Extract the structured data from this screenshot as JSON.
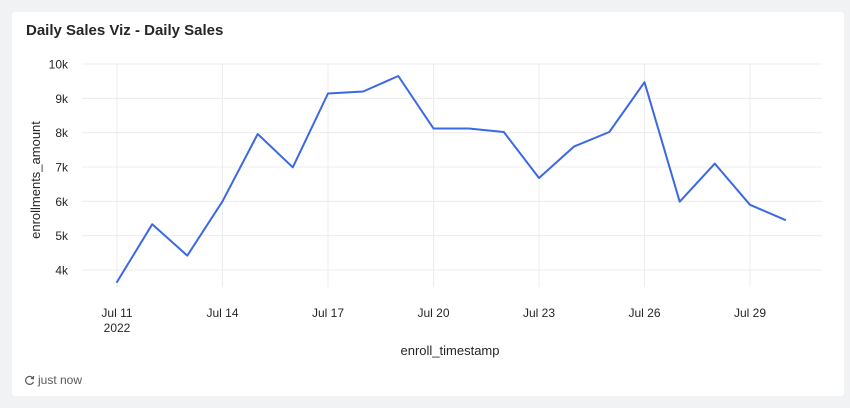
{
  "card": {
    "title": "Daily Sales Viz - Daily Sales",
    "refresh_status": "just now",
    "refresh_icon": "refresh-icon"
  },
  "chart_data": {
    "type": "line",
    "title": "Daily Sales Viz - Daily Sales",
    "xlabel": "enroll_timestamp",
    "ylabel": "enrollments_amount",
    "x": [
      "2022-07-11",
      "2022-07-12",
      "2022-07-13",
      "2022-07-14",
      "2022-07-15",
      "2022-07-16",
      "2022-07-17",
      "2022-07-18",
      "2022-07-19",
      "2022-07-20",
      "2022-07-21",
      "2022-07-22",
      "2022-07-23",
      "2022-07-24",
      "2022-07-25",
      "2022-07-26",
      "2022-07-27",
      "2022-07-28",
      "2022-07-29",
      "2022-07-30"
    ],
    "series": [
      {
        "values": [
          3650,
          5330,
          4420,
          6000,
          7960,
          6990,
          9140,
          9200,
          9650,
          8120,
          8120,
          8020,
          6680,
          7600,
          8020,
          9470,
          5990,
          7100,
          5900,
          5460
        ],
        "color": "#3b68e6"
      }
    ],
    "ylim": [
      3500,
      10000
    ],
    "yticks": [
      4000,
      5000,
      6000,
      7000,
      8000,
      9000,
      10000
    ],
    "ytick_labels": [
      "4k",
      "5k",
      "6k",
      "7k",
      "8k",
      "9k",
      "10k"
    ],
    "xticks": [
      "2022-07-11",
      "2022-07-14",
      "2022-07-17",
      "2022-07-20",
      "2022-07-23",
      "2022-07-26",
      "2022-07-29"
    ],
    "xtick_labels": [
      "Jul 11",
      "Jul 14",
      "Jul 17",
      "Jul 20",
      "Jul 23",
      "Jul 26",
      "Jul 29"
    ],
    "xtick_sublabel": "2022",
    "grid": true,
    "legend": "none"
  }
}
